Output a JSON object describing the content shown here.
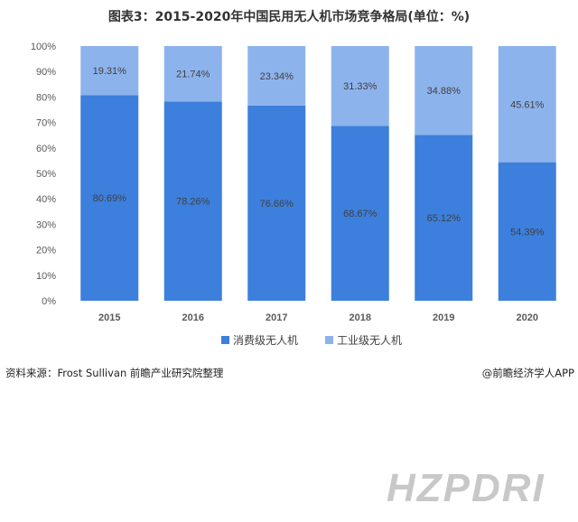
{
  "title": "图表3：2015-2020年中国民用无人机市场竞争格局(单位：%)",
  "source": "资料来源：Frost Sullivan 前瞻产业研究院整理",
  "credit": "@前瞻经济学人APP",
  "logo_text": "HZPDRI",
  "colors": {
    "consumer": "#3d7fdc",
    "industrial": "#8db3ec",
    "axis_text": "#595959",
    "bar_label": "#404040"
  },
  "chart_data": {
    "type": "bar",
    "stacked": true,
    "percent": true,
    "categories": [
      "2015",
      "2016",
      "2017",
      "2018",
      "2019",
      "2020"
    ],
    "series": [
      {
        "name": "消费级无人机",
        "values": [
          80.69,
          78.26,
          76.66,
          68.67,
          65.12,
          54.39
        ]
      },
      {
        "name": "工业级无人机",
        "values": [
          19.31,
          21.74,
          23.34,
          31.33,
          34.88,
          45.61
        ]
      }
    ],
    "data_labels": [
      [
        "80.69%",
        "78.26%",
        "76.66%",
        "68.67%",
        "65.12%",
        "54.39%"
      ],
      [
        "19.31%",
        "21.74%",
        "23.34%",
        "31.33%",
        "34.88%",
        "45.61%"
      ]
    ],
    "ylim": [
      0,
      100
    ],
    "yticks": [
      "0%",
      "10%",
      "20%",
      "30%",
      "40%",
      "50%",
      "60%",
      "70%",
      "80%",
      "90%",
      "100%"
    ],
    "legend_position": "bottom",
    "grid": false
  }
}
